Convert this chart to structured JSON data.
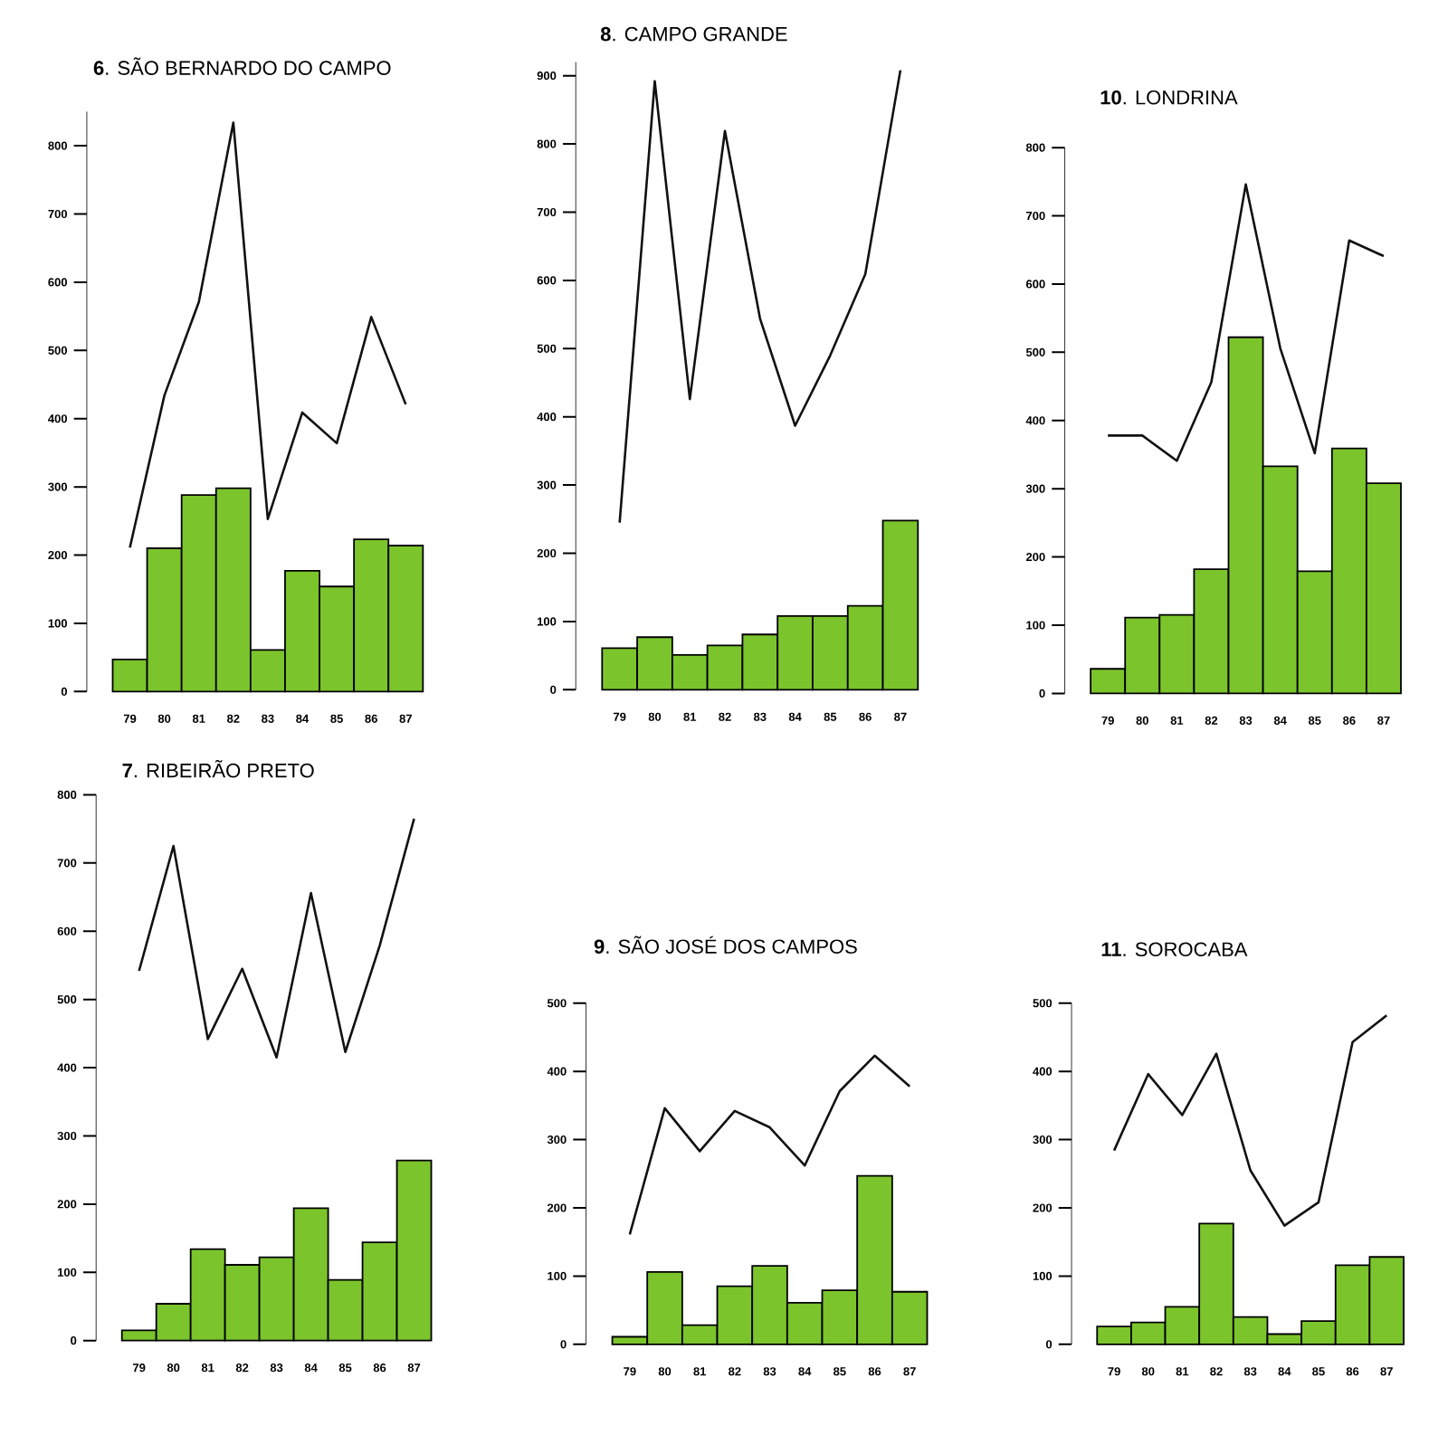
{
  "chart_data": [
    {
      "type": "bar",
      "title": "**6**. SÃO BERNARDO DO CAMPO",
      "categories": [
        "79",
        "80",
        "81",
        "82",
        "83",
        "84",
        "85",
        "86",
        "87"
      ],
      "ylim": [
        0,
        850
      ],
      "yticks": [
        0,
        100,
        200,
        300,
        400,
        500,
        600,
        700,
        800
      ],
      "series": [
        {
          "color": "#7cc42c",
          "values": [
            47,
            210,
            288,
            298,
            61,
            177,
            154,
            223,
            214
          ]
        },
        {
          "type": "line",
          "color": "#111111",
          "values": [
            211,
            434,
            571,
            834,
            253,
            409,
            364,
            549,
            421
          ]
        }
      ]
    },
    {
      "type": "bar",
      "title": "**8**. CAMPO GRANDE",
      "categories": [
        "79",
        "80",
        "81",
        "82",
        "83",
        "84",
        "85",
        "86",
        "87"
      ],
      "ylim": [
        0,
        920
      ],
      "yticks": [
        0,
        100,
        200,
        300,
        400,
        500,
        600,
        700,
        800,
        900
      ],
      "series": [
        {
          "color": "#7cc42c",
          "values": [
            61,
            77,
            51,
            65,
            81,
            108,
            108,
            123,
            248
          ]
        },
        {
          "type": "line",
          "color": "#111111",
          "values": [
            245,
            892,
            426,
            819,
            544,
            387,
            490,
            609,
            908
          ]
        }
      ]
    },
    {
      "type": "bar",
      "title": "**10**. LONDRINA",
      "categories": [
        "79",
        "80",
        "81",
        "82",
        "83",
        "84",
        "85",
        "86",
        "87"
      ],
      "ylim": [
        0,
        800
      ],
      "yticks": [
        0,
        100,
        200,
        300,
        400,
        500,
        600,
        700,
        800
      ],
      "series": [
        {
          "color": "#7cc42c",
          "values": [
            36,
            111,
            115,
            182,
            522,
            333,
            179,
            359,
            308
          ]
        },
        {
          "type": "line",
          "color": "#111111",
          "values": [
            378,
            378,
            341,
            456,
            746,
            506,
            352,
            664,
            641
          ]
        }
      ]
    },
    {
      "type": "bar",
      "title": "**7**. RIBEIRÃO PRETO",
      "categories": [
        "79",
        "80",
        "81",
        "82",
        "83",
        "84",
        "85",
        "86",
        "87"
      ],
      "ylim": [
        0,
        800
      ],
      "yticks": [
        0,
        100,
        200,
        300,
        400,
        500,
        600,
        700,
        800
      ],
      "series": [
        {
          "color": "#7cc42c",
          "values": [
            15,
            54,
            134,
            111,
            122,
            194,
            89,
            144,
            264
          ]
        },
        {
          "type": "line",
          "color": "#111111",
          "values": [
            542,
            725,
            442,
            545,
            415,
            656,
            423,
            579,
            765
          ]
        }
      ]
    },
    {
      "type": "bar",
      "title": "**9**. SÃO JOSÉ DOS CAMPOS",
      "categories": [
        "79",
        "80",
        "81",
        "82",
        "83",
        "84",
        "85",
        "86",
        "87"
      ],
      "ylim": [
        0,
        500
      ],
      "yticks": [
        0,
        100,
        200,
        300,
        400,
        500
      ],
      "series": [
        {
          "color": "#7cc42c",
          "values": [
            11,
            106,
            28,
            85,
            115,
            61,
            79,
            247,
            77
          ]
        },
        {
          "type": "line",
          "color": "#111111",
          "values": [
            161,
            346,
            283,
            342,
            318,
            262,
            371,
            423,
            378
          ]
        }
      ]
    },
    {
      "type": "bar",
      "title": "**11**. SOROCABA",
      "categories": [
        "79",
        "80",
        "81",
        "82",
        "83",
        "84",
        "85",
        "86",
        "87"
      ],
      "ylim": [
        0,
        500
      ],
      "yticks": [
        0,
        100,
        200,
        300,
        400,
        500
      ],
      "series": [
        {
          "color": "#7cc42c",
          "values": [
            26,
            32,
            55,
            177,
            40,
            15,
            34,
            116,
            128
          ]
        },
        {
          "type": "line",
          "color": "#111111",
          "values": [
            284,
            396,
            336,
            426,
            255,
            174,
            208,
            443,
            482
          ]
        }
      ]
    }
  ]
}
